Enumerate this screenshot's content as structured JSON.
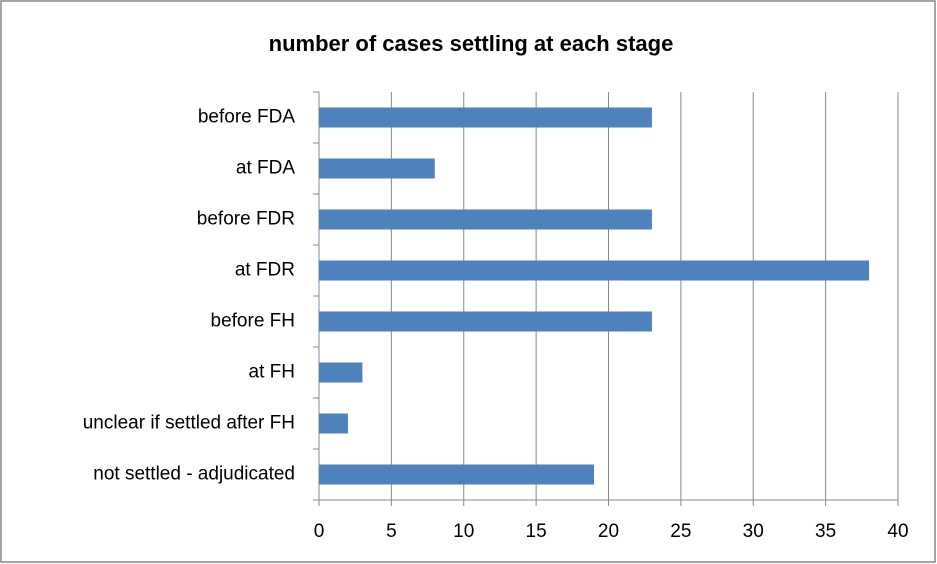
{
  "chart_data": {
    "type": "bar",
    "orientation": "horizontal",
    "title": "number of cases settling at each stage",
    "categories": [
      "before FDA",
      "at FDA",
      "before FDR",
      "at FDR",
      "before FH",
      "at FH",
      "unclear if settled after FH",
      "not settled - adjudicated"
    ],
    "values": [
      23,
      8,
      23,
      38,
      23,
      3,
      2,
      19
    ],
    "color": "#4f81bd",
    "xlim": [
      0,
      40
    ],
    "xticks": [
      0,
      5,
      10,
      15,
      20,
      25,
      30,
      35,
      40
    ],
    "grid": true
  }
}
